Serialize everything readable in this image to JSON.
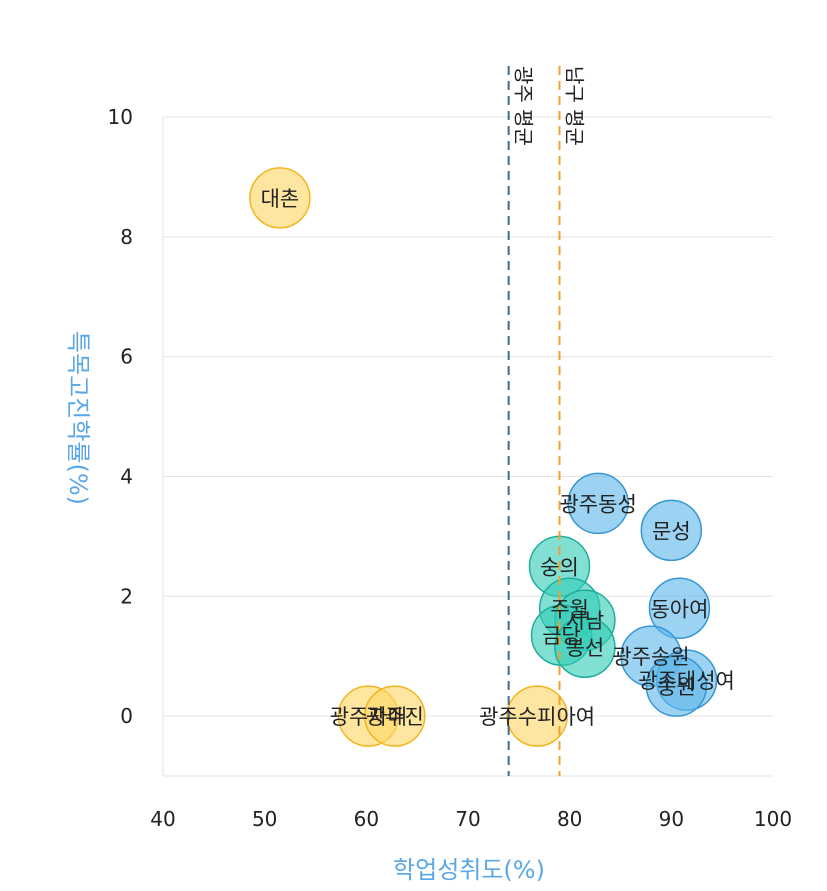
{
  "chart_data": {
    "type": "scatter",
    "xlabel": "학업성취도(%)",
    "ylabel": "특목고진학률(%)",
    "xlim": [
      40,
      100
    ],
    "ylim": [
      -1,
      10
    ],
    "x_ticks": [
      40,
      50,
      60,
      70,
      80,
      90,
      100
    ],
    "y_ticks": [
      0,
      2,
      4,
      6,
      8,
      10
    ],
    "grid": true,
    "reference_lines": [
      {
        "label": "광주 평균",
        "x": 74,
        "color": "#3d6f8e"
      },
      {
        "label": "남구 평균",
        "x": 79,
        "color": "#f0a030"
      }
    ],
    "groups": [
      {
        "color": "#ffd766",
        "stroke": "#f3b51f"
      },
      {
        "color": "#36cdb8",
        "stroke": "#1fae9b"
      },
      {
        "color": "#5fb8ea",
        "stroke": "#3797d4"
      }
    ],
    "points": [
      {
        "label": "대촌",
        "x": 51.5,
        "y": 8.65,
        "group": 0
      },
      {
        "label": "광주자매",
        "x": 60.2,
        "y": 0.0,
        "group": 0
      },
      {
        "label": "광주진",
        "x": 62.8,
        "y": 0.0,
        "group": 0
      },
      {
        "label": "광주수피아여",
        "x": 76.8,
        "y": 0.0,
        "group": 0
      },
      {
        "label": "숭의",
        "x": 79.0,
        "y": 2.5,
        "group": 1
      },
      {
        "label": "주월",
        "x": 80.0,
        "y": 1.8,
        "group": 1
      },
      {
        "label": "서남",
        "x": 81.5,
        "y": 1.6,
        "group": 1
      },
      {
        "label": "금당",
        "x": 79.2,
        "y": 1.35,
        "group": 1
      },
      {
        "label": "봉선",
        "x": 81.5,
        "y": 1.15,
        "group": 1
      },
      {
        "label": "광주동성",
        "x": 82.8,
        "y": 3.55,
        "group": 2
      },
      {
        "label": "문성",
        "x": 90.0,
        "y": 3.1,
        "group": 2
      },
      {
        "label": "동아여",
        "x": 90.8,
        "y": 1.8,
        "group": 2
      },
      {
        "label": "광주송원",
        "x": 88.0,
        "y": 1.0,
        "group": 2
      },
      {
        "label": "광주대성여",
        "x": 91.5,
        "y": 0.6,
        "group": 2
      },
      {
        "label": "송원",
        "x": 90.5,
        "y": 0.5,
        "group": 2
      }
    ]
  }
}
